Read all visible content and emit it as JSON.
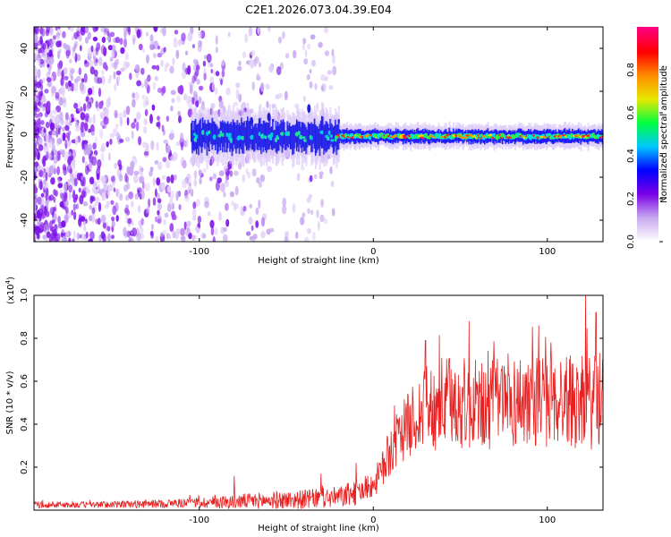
{
  "title": "C2E1.2026.073.04.39.E04",
  "chart_data": [
    {
      "type": "heatmap",
      "name": "spectrogram",
      "xlabel": "Height of straight line (km)",
      "ylabel": "Frequency (Hz)",
      "xlim": [
        -195,
        132
      ],
      "ylim": [
        -50,
        50
      ],
      "xticks": [
        -100,
        0,
        100
      ],
      "yticks": [
        -40,
        -20,
        0,
        20,
        40
      ],
      "ridge": {
        "x_start": -105,
        "x_end": 132,
        "frequency": -1,
        "strong_from": -20
      },
      "noise_region": {
        "x_min": -195,
        "x_max": -20
      },
      "colorbar": {
        "label": "Normalized spectral amplitude",
        "range": [
          0,
          1
        ],
        "ticks": [
          0.0,
          0.2,
          0.4,
          0.6,
          0.8
        ],
        "colors": [
          "#ffffff",
          "#c8a8f0",
          "#7a00e8",
          "#0000ff",
          "#00c8ff",
          "#00ff40",
          "#e8e800",
          "#ff8c00",
          "#ff0000",
          "#ff0080"
        ]
      }
    },
    {
      "type": "line",
      "name": "snr-trace",
      "xlabel": "Height of straight line (km)",
      "ylabel": "SNR (10 * v/v)",
      "scale_label": "(x10",
      "scale_exp": "4",
      "scale_close": ")",
      "xlim": [
        -195,
        132
      ],
      "ylim": [
        0,
        1.0
      ],
      "xticks": [
        -100,
        0,
        100
      ],
      "yticks": [
        0.2,
        0.4,
        0.6,
        0.8,
        1.0
      ],
      "series": [
        {
          "name": "SNR",
          "color": "#e82020",
          "x": [
            -195,
            -160,
            -120,
            -100,
            -80,
            -60,
            -40,
            -20,
            -10,
            0,
            5,
            10,
            20,
            30,
            40,
            50,
            60,
            70,
            80,
            90,
            100,
            110,
            120,
            132
          ],
          "mean": [
            0.025,
            0.025,
            0.03,
            0.035,
            0.04,
            0.045,
            0.05,
            0.06,
            0.08,
            0.12,
            0.18,
            0.28,
            0.4,
            0.47,
            0.5,
            0.5,
            0.48,
            0.5,
            0.5,
            0.52,
            0.5,
            0.52,
            0.5,
            0.5
          ],
          "spread": [
            0.015,
            0.015,
            0.02,
            0.025,
            0.035,
            0.04,
            0.045,
            0.05,
            0.06,
            0.06,
            0.09,
            0.12,
            0.15,
            0.2,
            0.22,
            0.22,
            0.22,
            0.22,
            0.22,
            0.22,
            0.22,
            0.22,
            0.22,
            0.22
          ],
          "peaks": [
            [
              -80,
              0.16
            ],
            [
              -30,
              0.17
            ],
            [
              -10,
              0.22
            ],
            [
              30,
              0.79
            ],
            [
              55,
              0.88
            ],
            [
              95,
              0.86
            ],
            [
              102,
              0.78
            ],
            [
              122,
              1.0
            ],
            [
              128,
              0.92
            ]
          ]
        }
      ]
    }
  ]
}
